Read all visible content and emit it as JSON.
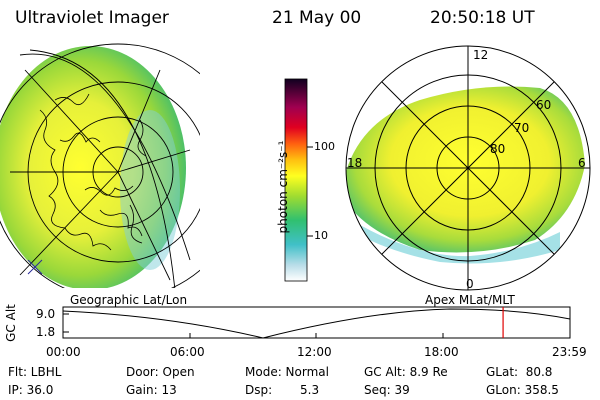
{
  "header": {
    "instrument": "Ultraviolet Imager",
    "date": "21 May 00",
    "time": "20:50:18 UT"
  },
  "colorbar": {
    "label": "photon cm⁻²s⁻¹",
    "tick_high": "100",
    "tick_low": "10"
  },
  "left_map": {
    "caption": "Geographic Lat/Lon"
  },
  "right_map": {
    "caption": "Apex MLat/MLT",
    "mlt_top": "12",
    "mlt_bottom": "0",
    "mlt_left": "18",
    "mlt_right": "6",
    "lat_60": "60",
    "lat_70": "70",
    "lat_80": "80"
  },
  "timeline": {
    "ylabel": "GC Alt",
    "y_top": "9.0",
    "y_bottom": "1.8",
    "x_ticks": [
      "00:00",
      "06:00",
      "12:00",
      "18:00",
      "23:59"
    ],
    "current_marker_fraction": 0.868
  },
  "info": {
    "flt": "Flt: LBHL",
    "door": "Door: Open",
    "mode": "Mode: Normal",
    "gc_alt": "GC Alt: 8.9 Re",
    "glat": "GLat:  80.8",
    "ip": "IP: 36.0",
    "gain": "Gain: 13",
    "dsp_label": "Dsp:",
    "dsp_value": "5.3",
    "seq": "Seq: 39",
    "glon": "GLon: 358.5"
  },
  "colors": {
    "marker": "#e00000"
  }
}
